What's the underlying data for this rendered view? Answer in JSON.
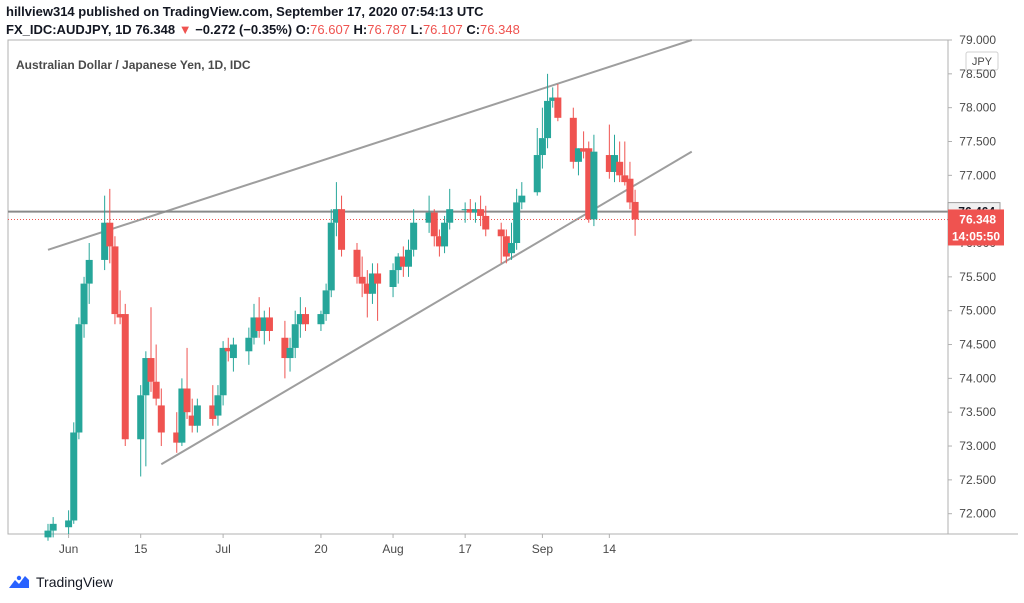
{
  "header": {
    "publish_line": "hillview314 published on TradingView.com, September 17, 2020 07:54:13 UTC",
    "symbol": "FX_IDC:AUDJPY, 1D",
    "last": "76.348",
    "change_arrow": "▼",
    "change": "−0.272 (−0.35%)",
    "o_label": "O:",
    "o": "76.607",
    "h_label": "H:",
    "h": "76.787",
    "l_label": "L:",
    "l": "76.107",
    "c_label": "C:",
    "c": "76.348"
  },
  "footer": {
    "brand": "TradingView"
  },
  "colors": {
    "up": "#26a69a",
    "down": "#ef5350",
    "trendline": "#9e9e9e",
    "hline": "#8a8a8a",
    "axis_text": "#4a4a4a"
  },
  "chart_data": {
    "type": "candlestick",
    "title": "Australian Dollar / Japanese Yen, 1D, IDC",
    "currency": "JPY",
    "x_ticks": [
      "Jun",
      "15",
      "Jul",
      "20",
      "Aug",
      "17",
      "Sep",
      "14"
    ],
    "y_ticks": [
      "72.000",
      "72.500",
      "73.000",
      "73.500",
      "74.000",
      "74.500",
      "75.000",
      "75.500",
      "76.000",
      "76.500",
      "77.000",
      "77.500",
      "78.000",
      "78.500",
      "79.000"
    ],
    "ylim": [
      71.7,
      79.0
    ],
    "horizontal_line": {
      "value": 76.464,
      "label": "76.464"
    },
    "last_price": {
      "value": 76.348,
      "label": "76.348",
      "countdown": "14:05:50"
    },
    "trendlines": [
      {
        "from": [
          "2020-05-28",
          75.9
        ],
        "to": [
          "2020-09-30",
          79.0
        ]
      },
      {
        "from": [
          "2020-06-19",
          72.73
        ],
        "to": [
          "2020-09-30",
          77.35
        ]
      }
    ],
    "candles": [
      {
        "d": "2020-05-28",
        "o": 71.65,
        "h": 71.85,
        "l": 71.6,
        "c": 71.75
      },
      {
        "d": "2020-05-29",
        "o": 71.75,
        "h": 71.95,
        "l": 71.65,
        "c": 71.85
      },
      {
        "d": "2020-06-01",
        "o": 71.8,
        "h": 72.05,
        "l": 71.7,
        "c": 71.9
      },
      {
        "d": "2020-06-02",
        "o": 71.9,
        "h": 73.35,
        "l": 71.85,
        "c": 73.2
      },
      {
        "d": "2020-06-03",
        "o": 73.2,
        "h": 74.9,
        "l": 73.1,
        "c": 74.8
      },
      {
        "d": "2020-06-04",
        "o": 74.8,
        "h": 75.5,
        "l": 74.6,
        "c": 75.4
      },
      {
        "d": "2020-06-05",
        "o": 75.4,
        "h": 76.0,
        "l": 75.1,
        "c": 75.75
      },
      {
        "d": "2020-06-08",
        "o": 75.75,
        "h": 76.7,
        "l": 75.6,
        "c": 76.3
      },
      {
        "d": "2020-06-09",
        "o": 76.3,
        "h": 76.8,
        "l": 75.7,
        "c": 75.95
      },
      {
        "d": "2020-06-10",
        "o": 75.95,
        "h": 76.1,
        "l": 74.8,
        "c": 74.95
      },
      {
        "d": "2020-06-11",
        "o": 74.95,
        "h": 75.3,
        "l": 74.8,
        "c": 74.9
      },
      {
        "d": "2020-06-12",
        "o": 74.95,
        "h": 75.1,
        "l": 73.0,
        "c": 73.1
      },
      {
        "d": "2020-06-15",
        "o": 73.1,
        "h": 73.9,
        "l": 72.55,
        "c": 73.75
      },
      {
        "d": "2020-06-16",
        "o": 73.75,
        "h": 74.4,
        "l": 72.7,
        "c": 74.3
      },
      {
        "d": "2020-06-17",
        "o": 74.3,
        "h": 75.05,
        "l": 73.8,
        "c": 73.95
      },
      {
        "d": "2020-06-18",
        "o": 73.95,
        "h": 74.5,
        "l": 73.6,
        "c": 73.7
      },
      {
        "d": "2020-06-19",
        "o": 73.6,
        "h": 73.85,
        "l": 73.0,
        "c": 73.2
      },
      {
        "d": "2020-06-22",
        "o": 73.2,
        "h": 73.5,
        "l": 72.9,
        "c": 73.05
      },
      {
        "d": "2020-06-23",
        "o": 73.05,
        "h": 74.0,
        "l": 73.0,
        "c": 73.85
      },
      {
        "d": "2020-06-24",
        "o": 73.85,
        "h": 74.45,
        "l": 73.4,
        "c": 73.5
      },
      {
        "d": "2020-06-25",
        "o": 73.45,
        "h": 73.7,
        "l": 73.2,
        "c": 73.3
      },
      {
        "d": "2020-06-26",
        "o": 73.3,
        "h": 73.7,
        "l": 73.2,
        "c": 73.6
      },
      {
        "d": "2020-06-29",
        "o": 73.6,
        "h": 73.9,
        "l": 73.3,
        "c": 73.4
      },
      {
        "d": "2020-06-30",
        "o": 73.45,
        "h": 73.9,
        "l": 73.3,
        "c": 73.75
      },
      {
        "d": "2020-07-01",
        "o": 73.75,
        "h": 74.55,
        "l": 73.6,
        "c": 74.45
      },
      {
        "d": "2020-07-02",
        "o": 74.45,
        "h": 74.6,
        "l": 74.25,
        "c": 74.4
      },
      {
        "d": "2020-07-03",
        "o": 74.3,
        "h": 74.6,
        "l": 74.1,
        "c": 74.5
      },
      {
        "d": "2020-07-06",
        "o": 74.4,
        "h": 74.75,
        "l": 74.2,
        "c": 74.6
      },
      {
        "d": "2020-07-07",
        "o": 74.6,
        "h": 75.1,
        "l": 74.5,
        "c": 74.9
      },
      {
        "d": "2020-07-08",
        "o": 74.9,
        "h": 75.2,
        "l": 74.6,
        "c": 74.7
      },
      {
        "d": "2020-07-09",
        "o": 74.7,
        "h": 75.0,
        "l": 74.5,
        "c": 74.9
      },
      {
        "d": "2020-07-10",
        "o": 74.9,
        "h": 75.05,
        "l": 74.55,
        "c": 74.7
      },
      {
        "d": "2020-07-13",
        "o": 74.6,
        "h": 74.85,
        "l": 74.0,
        "c": 74.3
      },
      {
        "d": "2020-07-14",
        "o": 74.3,
        "h": 74.6,
        "l": 74.1,
        "c": 74.45
      },
      {
        "d": "2020-07-15",
        "o": 74.45,
        "h": 75.0,
        "l": 74.3,
        "c": 74.8
      },
      {
        "d": "2020-07-16",
        "o": 74.8,
        "h": 75.2,
        "l": 74.6,
        "c": 74.95
      },
      {
        "d": "2020-07-17",
        "o": 74.95,
        "h": 75.05,
        "l": 74.7,
        "c": 74.8
      },
      {
        "d": "2020-07-20",
        "o": 74.8,
        "h": 75.0,
        "l": 74.7,
        "c": 74.95
      },
      {
        "d": "2020-07-21",
        "o": 74.95,
        "h": 75.4,
        "l": 74.85,
        "c": 75.3
      },
      {
        "d": "2020-07-22",
        "o": 75.3,
        "h": 76.5,
        "l": 75.2,
        "c": 76.3
      },
      {
        "d": "2020-07-23",
        "o": 76.3,
        "h": 76.9,
        "l": 76.1,
        "c": 76.5
      },
      {
        "d": "2020-07-24",
        "o": 76.5,
        "h": 76.7,
        "l": 75.8,
        "c": 75.9
      },
      {
        "d": "2020-07-27",
        "o": 75.9,
        "h": 76.0,
        "l": 75.4,
        "c": 75.5
      },
      {
        "d": "2020-07-28",
        "o": 75.5,
        "h": 75.8,
        "l": 75.2,
        "c": 75.4
      },
      {
        "d": "2020-07-29",
        "o": 75.4,
        "h": 75.6,
        "l": 74.9,
        "c": 75.25
      },
      {
        "d": "2020-07-30",
        "o": 75.25,
        "h": 75.7,
        "l": 75.1,
        "c": 75.55
      },
      {
        "d": "2020-07-31",
        "o": 75.55,
        "h": 75.7,
        "l": 74.85,
        "c": 75.4
      },
      {
        "d": "2020-08-03",
        "o": 75.35,
        "h": 75.7,
        "l": 75.2,
        "c": 75.6
      },
      {
        "d": "2020-08-04",
        "o": 75.6,
        "h": 75.85,
        "l": 75.4,
        "c": 75.8
      },
      {
        "d": "2020-08-05",
        "o": 75.8,
        "h": 75.95,
        "l": 75.5,
        "c": 75.65
      },
      {
        "d": "2020-08-06",
        "o": 75.65,
        "h": 76.05,
        "l": 75.5,
        "c": 75.9
      },
      {
        "d": "2020-08-07",
        "o": 75.9,
        "h": 76.5,
        "l": 75.8,
        "c": 76.3
      },
      {
        "d": "2020-08-10",
        "o": 76.3,
        "h": 76.7,
        "l": 76.15,
        "c": 76.45
      },
      {
        "d": "2020-08-11",
        "o": 76.45,
        "h": 76.5,
        "l": 75.95,
        "c": 76.1
      },
      {
        "d": "2020-08-12",
        "o": 76.1,
        "h": 76.2,
        "l": 75.8,
        "c": 75.95
      },
      {
        "d": "2020-08-13",
        "o": 75.95,
        "h": 76.4,
        "l": 75.85,
        "c": 76.3
      },
      {
        "d": "2020-08-14",
        "o": 76.3,
        "h": 76.8,
        "l": 76.2,
        "c": 76.5
      },
      {
        "d": "2020-08-17",
        "o": 76.5,
        "h": 76.6,
        "l": 76.3,
        "c": 76.5
      },
      {
        "d": "2020-08-18",
        "o": 76.5,
        "h": 76.65,
        "l": 76.35,
        "c": 76.45
      },
      {
        "d": "2020-08-19",
        "o": 76.45,
        "h": 76.6,
        "l": 76.3,
        "c": 76.5
      },
      {
        "d": "2020-08-20",
        "o": 76.5,
        "h": 76.7,
        "l": 76.25,
        "c": 76.4
      },
      {
        "d": "2020-08-21",
        "o": 76.4,
        "h": 76.55,
        "l": 76.1,
        "c": 76.2
      },
      {
        "d": "2020-08-24",
        "o": 76.2,
        "h": 76.3,
        "l": 75.7,
        "c": 76.1
      },
      {
        "d": "2020-08-25",
        "o": 76.1,
        "h": 76.2,
        "l": 75.7,
        "c": 75.8
      },
      {
        "d": "2020-08-26",
        "o": 75.85,
        "h": 76.3,
        "l": 75.75,
        "c": 76.0
      },
      {
        "d": "2020-08-27",
        "o": 76.0,
        "h": 76.8,
        "l": 75.9,
        "c": 76.6
      },
      {
        "d": "2020-08-28",
        "o": 76.6,
        "h": 76.9,
        "l": 76.5,
        "c": 76.7
      },
      {
        "d": "2020-08-31",
        "o": 76.75,
        "h": 77.7,
        "l": 76.7,
        "c": 77.3
      },
      {
        "d": "2020-09-01",
        "o": 77.3,
        "h": 78.0,
        "l": 77.1,
        "c": 77.55
      },
      {
        "d": "2020-09-02",
        "o": 77.55,
        "h": 78.5,
        "l": 77.4,
        "c": 78.1
      },
      {
        "d": "2020-09-03",
        "o": 78.1,
        "h": 78.3,
        "l": 78.0,
        "c": 78.15
      },
      {
        "d": "2020-09-04",
        "o": 78.15,
        "h": 78.35,
        "l": 77.8,
        "c": 77.85
      },
      {
        "d": "2020-09-07",
        "o": 77.85,
        "h": 78.0,
        "l": 77.1,
        "c": 77.2
      },
      {
        "d": "2020-09-08",
        "o": 77.2,
        "h": 77.4,
        "l": 77.0,
        "c": 77.4
      },
      {
        "d": "2020-09-09",
        "o": 77.4,
        "h": 77.65,
        "l": 77.25,
        "c": 77.35
      },
      {
        "d": "2020-09-10",
        "o": 77.4,
        "h": 77.5,
        "l": 76.3,
        "c": 76.35
      },
      {
        "d": "2020-09-11",
        "o": 76.35,
        "h": 77.6,
        "l": 76.25,
        "c": 77.35
      },
      {
        "d": "2020-09-14",
        "o": 77.3,
        "h": 77.75,
        "l": 76.95,
        "c": 77.05
      },
      {
        "d": "2020-09-15",
        "o": 77.05,
        "h": 77.6,
        "l": 76.9,
        "c": 77.3
      },
      {
        "d": "2020-09-16",
        "o": 77.2,
        "h": 77.5,
        "l": 76.9,
        "c": 77.0
      },
      {
        "d": "2020-09-17",
        "o": 77.0,
        "h": 77.5,
        "l": 76.85,
        "c": 76.9
      },
      {
        "d": "2020-09-18",
        "o": 76.95,
        "h": 77.2,
        "l": 76.5,
        "c": 76.6
      },
      {
        "d": "2020-09-19",
        "o": 76.607,
        "h": 76.787,
        "l": 76.107,
        "c": 76.348
      }
    ]
  }
}
